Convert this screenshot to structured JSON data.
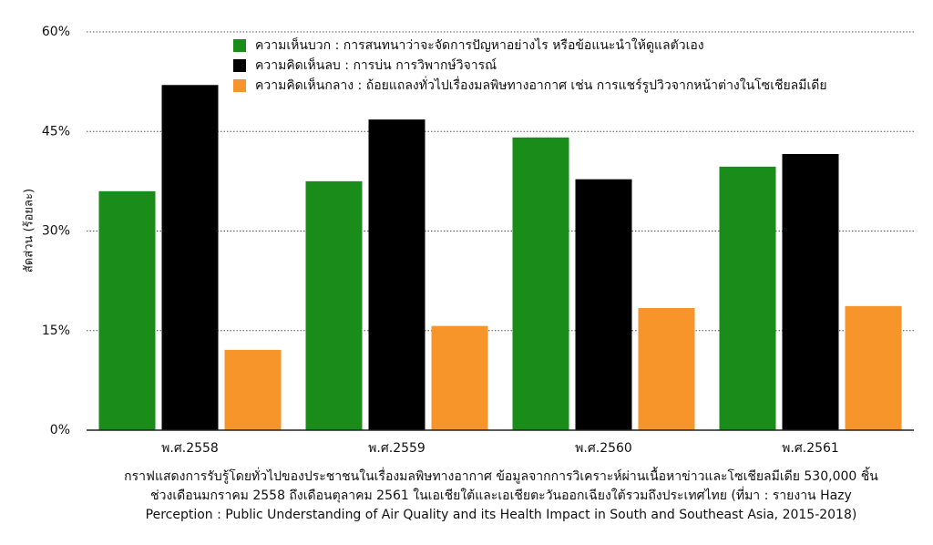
{
  "chart_data": {
    "type": "bar",
    "y_label": "สัดส่วน (ร้อยละ)",
    "categories": [
      "พ.ศ.2558",
      "พ.ศ.2559",
      "พ.ศ.2560",
      "พ.ศ.2561"
    ],
    "series": [
      {
        "name": "ความเห็นบวก : การสนทนาว่าจะจัดการปัญหาอย่างไร หรือข้อแนะนำให้ดูแลตัวเอง",
        "color": "#1a8c1a",
        "values": [
          36.0,
          37.5,
          44.1,
          39.7
        ]
      },
      {
        "name": "ความคิดเห็นลบ : การบ่น การวิพากษ์วิจารณ์",
        "color": "#000000",
        "values": [
          52.0,
          46.8,
          37.8,
          41.6
        ]
      },
      {
        "name": "ความคิดเห็นกลาง : ถ้อยแถลงทั่วไปเรื่องมลพิษทางอากาศ เช่น การแชร์รูปวิวจากหน้าต่างในโซเชียลมีเดีย",
        "color": "#f7952a",
        "values": [
          12.1,
          15.7,
          18.4,
          18.7
        ]
      }
    ],
    "ylim": [
      0,
      60
    ],
    "yticks": [
      {
        "value": 0,
        "label": "0%"
      },
      {
        "value": 15,
        "label": "15%"
      },
      {
        "value": 30,
        "label": "30%"
      },
      {
        "value": 45,
        "label": "45%"
      },
      {
        "value": 60,
        "label": "60%"
      }
    ],
    "grid": true,
    "caption": [
      "กราฟแสดงการรับรู้โดยทั่วไปของประชาชนในเรื่องมลพิษทางอากาศ ข้อมูลจากการวิเคราะห์ผ่านเนื้อหาข่าวและโซเชียลมีเดีย 530,000 ชิ้น",
      "ช่วงเดือนมกราคม 2558 ถึงเดือนตุลาคม 2561 ในเอเชียใต้และเอเชียตะวันออกเฉียงใต้รวมถึงประเทศไทย (ที่มา : รายงาน Hazy",
      "Perception : Public Understanding of Air Quality and its Health Impact in South and Southeast Asia, 2015-2018)"
    ]
  }
}
